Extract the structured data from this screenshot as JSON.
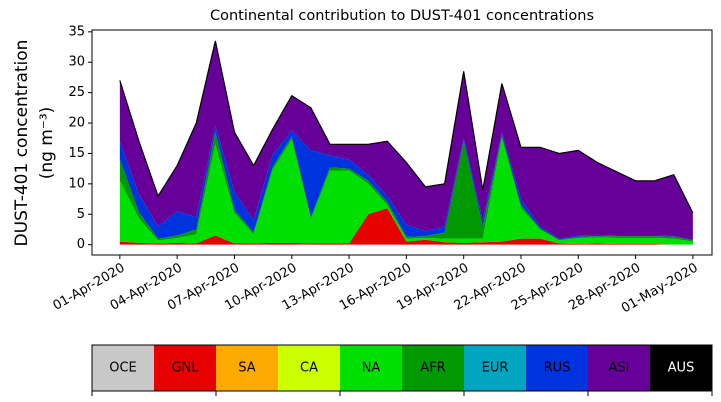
{
  "chart_data": {
    "type": "stacked-area",
    "title": "Continental contribution to DUST-401 concentrations",
    "ylabel": [
      "DUST-401 concentration",
      "(ng m⁻³)"
    ],
    "x": [
      "2020-04-01",
      "2020-04-02",
      "2020-04-03",
      "2020-04-04",
      "2020-04-05",
      "2020-04-06",
      "2020-04-07",
      "2020-04-08",
      "2020-04-09",
      "2020-04-10",
      "2020-04-11",
      "2020-04-12",
      "2020-04-13",
      "2020-04-14",
      "2020-04-15",
      "2020-04-16",
      "2020-04-17",
      "2020-04-18",
      "2020-04-19",
      "2020-04-20",
      "2020-04-21",
      "2020-04-22",
      "2020-04-23",
      "2020-04-24",
      "2020-04-25",
      "2020-04-26",
      "2020-04-27",
      "2020-04-28",
      "2020-04-29",
      "2020-04-30",
      "2020-05-01"
    ],
    "xlim": [
      "2020-03-30T13:00Z",
      "2020-05-02T00:00Z"
    ],
    "xticks": [
      {
        "value": "2020-04-01",
        "label": "01-Apr-2020"
      },
      {
        "value": "2020-04-04",
        "label": "04-Apr-2020"
      },
      {
        "value": "2020-04-07",
        "label": "07-Apr-2020"
      },
      {
        "value": "2020-04-10",
        "label": "10-Apr-2020"
      },
      {
        "value": "2020-04-13",
        "label": "13-Apr-2020"
      },
      {
        "value": "2020-04-16",
        "label": "16-Apr-2020"
      },
      {
        "value": "2020-04-19",
        "label": "19-Apr-2020"
      },
      {
        "value": "2020-04-22",
        "label": "22-Apr-2020"
      },
      {
        "value": "2020-04-25",
        "label": "25-Apr-2020"
      },
      {
        "value": "2020-04-28",
        "label": "28-Apr-2020"
      },
      {
        "value": "2020-05-01",
        "label": "01-May-2020"
      }
    ],
    "ylim": [
      -1.7,
      35.3
    ],
    "yticks": [
      0,
      5,
      10,
      15,
      20,
      25,
      30,
      35
    ],
    "series": [
      {
        "name": "OCE",
        "color": "#c8c8c8",
        "values": [
          0,
          0,
          0,
          0,
          0,
          0,
          0,
          0,
          0,
          0,
          0,
          0,
          0,
          0,
          0,
          0,
          0,
          0,
          0,
          0,
          0,
          0,
          0,
          0,
          0,
          0,
          0,
          0,
          0,
          0,
          0
        ]
      },
      {
        "name": "GNL",
        "color": "#e60000",
        "values": [
          0.5,
          0.3,
          0.2,
          0.3,
          0.2,
          1.5,
          0.2,
          0.2,
          0.3,
          0.3,
          0.2,
          0.2,
          0.2,
          5,
          6,
          0.5,
          0.8,
          0.4,
          0.3,
          0.4,
          0.5,
          1,
          1,
          0.2,
          0.1,
          0.2,
          0.1,
          0.1,
          0.1,
          0,
          0
        ]
      },
      {
        "name": "SA",
        "color": "#ffaa00",
        "values": [
          0,
          0,
          0,
          0,
          0,
          0,
          0,
          0,
          0,
          0,
          0,
          0,
          0,
          0,
          0,
          0,
          0,
          0,
          0,
          0,
          0,
          0,
          0,
          0,
          0,
          0,
          0,
          0,
          0,
          0,
          0
        ]
      },
      {
        "name": "CA",
        "color": "#ccff00",
        "values": [
          0,
          0,
          0,
          0,
          0,
          0,
          0,
          0,
          0,
          0,
          0,
          0,
          0,
          0,
          0,
          0,
          0,
          0,
          0,
          0,
          0,
          0,
          0,
          0,
          0,
          0,
          0,
          0,
          0,
          0,
          0
        ]
      },
      {
        "name": "NA",
        "color": "#00e000",
        "values": [
          10,
          4,
          0.5,
          0.8,
          1.5,
          15,
          5,
          1.5,
          12,
          17,
          4,
          12,
          12,
          5,
          0.5,
          0.5,
          0.3,
          0.6,
          0.7,
          0.6,
          17,
          5,
          1.5,
          0.5,
          1,
          1,
          1,
          1,
          1,
          1,
          0.5
        ]
      },
      {
        "name": "AFR",
        "color": "#009900",
        "values": [
          3.5,
          1,
          0.3,
          0.4,
          0.8,
          2,
          0.5,
          0.3,
          0.5,
          0.5,
          0.3,
          0.5,
          0.3,
          0.5,
          0.5,
          0.3,
          0.3,
          1,
          16,
          2,
          0.5,
          0.5,
          0.2,
          0.1,
          0.2,
          0.2,
          0.3,
          0.3,
          0.3,
          0.3,
          0.2
        ]
      },
      {
        "name": "EUR",
        "color": "#00a6bf",
        "values": [
          0,
          0,
          0,
          0,
          0,
          0,
          0,
          0,
          0,
          0,
          0,
          0,
          0,
          0,
          0,
          0,
          0,
          0,
          0,
          0,
          0,
          0,
          0,
          0,
          0,
          0,
          0,
          0,
          0,
          0,
          0
        ]
      },
      {
        "name": "RUS",
        "color": "#0033e0",
        "values": [
          3,
          3,
          2,
          4,
          2,
          1,
          3,
          2,
          2,
          1,
          11,
          2,
          1.5,
          1,
          1,
          2,
          0.8,
          1,
          0.5,
          1,
          0.5,
          1,
          0.3,
          0.2,
          0.2,
          0.2,
          0.1,
          0.1,
          0.1,
          0.1,
          0.1
        ]
      },
      {
        "name": "ASI",
        "color": "#660099",
        "values": [
          10,
          8.7,
          5,
          7.5,
          15.5,
          14,
          9.8,
          9,
          4.2,
          5.7,
          7,
          1.8,
          2.5,
          5,
          9,
          10.2,
          7.3,
          7,
          11,
          5,
          8,
          8.5,
          13,
          14,
          14,
          11.9,
          10.5,
          9,
          9,
          10.1,
          4.4
        ]
      },
      {
        "name": "AUS",
        "color": "#000000",
        "values": [
          0,
          0,
          0,
          0,
          0,
          0,
          0,
          0,
          0,
          0,
          0,
          0,
          0,
          0,
          0,
          0,
          0,
          0,
          0,
          0,
          0,
          0,
          0,
          0,
          0,
          0,
          0,
          0,
          0,
          0,
          0
        ]
      }
    ]
  }
}
